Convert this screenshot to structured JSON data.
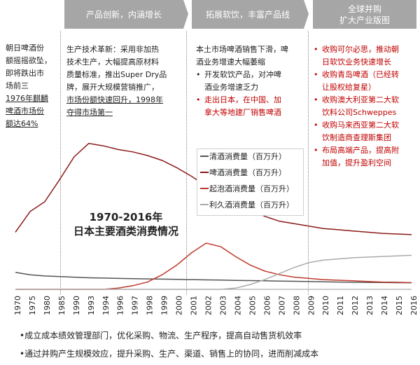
{
  "headers": [
    {
      "text": "产品创新，内涵增长"
    },
    {
      "text": "拓展软饮，丰富产品线"
    },
    {
      "text": "全球并购\n扩大产业版图"
    }
  ],
  "col1": {
    "line1": "朝日啤酒份",
    "line2": "额摇摇欲坠，",
    "line3": "即将跌出市",
    "line4": "场前三",
    "line5": "1976年麒麟",
    "line6": "啤酒市场份",
    "line7": "额达64%"
  },
  "col2": {
    "line1": "生产技术革新：采用非加热",
    "line2": "技术生产，大幅提高原材料",
    "line3": "质量标准，推出Super Dry品",
    "line4": "牌，展开大规模营销推广，",
    "line5": "市场份额快速回升，1998年",
    "line6": "夺得市场第一"
  },
  "col3": {
    "line1": "本土市场啤酒销售下滑，啤",
    "line2": "酒业务增速大幅萎缩",
    "b1a": "开发软饮产品，对冲啤",
    "b1b": "酒业务增速乏力",
    "b2a": "走出日本，在中国、加",
    "b2b": "拿大等地建厂销售啤酒"
  },
  "col4": {
    "b1a": "收购可尔必思，推动朝",
    "b1b": "日软饮业务快速增长",
    "b2a": "收购青岛啤酒（已经转",
    "b2b": "让股权给复星）",
    "b3a": "收购澳大利亚第二大软",
    "b3b": "饮料公司Schweppes",
    "b4a": "收购马来西亚第二大软",
    "b4b": "饮制造商查理斯集团",
    "b5a": "布局高端产品，提高附",
    "b5b": "加值，提升盈利空间"
  },
  "footer": [
    {
      "text": "•成立成本绩效管理部门，优化采购、物流、生产程序，提高自动售货机效率"
    },
    {
      "text": "•通过并购产生规模效应，提升采购、生产、渠道、销售上的协同，进而削减成本"
    }
  ],
  "colors": {
    "header_bg": "#a6a6a6",
    "accent_red": "#c00000"
  },
  "chart_data": {
    "type": "line",
    "title": "1970-2016年\n日本主要酒类消费情况",
    "x": [
      1970,
      1975,
      1980,
      1985,
      1990,
      1993,
      1994,
      1996,
      1997,
      1998,
      1999,
      2000,
      2001,
      2002,
      2003,
      2004,
      2005,
      2006,
      2007,
      2008,
      2009,
      2010,
      2011,
      2012,
      2013,
      2014,
      2015,
      2016
    ],
    "x_tick_labels": [
      "1970",
      "1975",
      "1980",
      "1985",
      "1990",
      "1993",
      "1994",
      "1996",
      "1997",
      "1998",
      "1999",
      "2000",
      "2001",
      "2002",
      "2003",
      "2004",
      "2005",
      "2006",
      "2007",
      "2008",
      "2009",
      "2010",
      "2011",
      "2012",
      "2013",
      "2014",
      "2015",
      "2016"
    ],
    "series": [
      {
        "name": "清酒消费量（百万升）",
        "color": "#555555",
        "values": [
          140,
          120,
          110,
          105,
          100,
          95,
          93,
          90,
          88,
          86,
          84,
          82,
          80,
          78,
          76,
          74,
          72,
          70,
          68,
          66,
          64,
          62,
          60,
          58,
          57,
          56,
          55,
          54
        ]
      },
      {
        "name": "啤酒消费量（百万升）",
        "color": "#8b1a1a",
        "values": [
          470,
          640,
          720,
          900,
          1090,
          1200,
          1180,
          1150,
          1130,
          1100,
          1060,
          1000,
          930,
          850,
          780,
          720,
          660,
          600,
          560,
          540,
          520,
          500,
          490,
          480,
          470,
          460,
          455,
          450
        ]
      },
      {
        "name": "起泡酒消费量（百万升）",
        "color": "#c0392b",
        "values": [
          0,
          0,
          0,
          0,
          0,
          0,
          0,
          10,
          30,
          60,
          120,
          200,
          300,
          380,
          350,
          270,
          200,
          150,
          120,
          100,
          90,
          80,
          75,
          70,
          65,
          60,
          58,
          55
        ]
      },
      {
        "name": "利久酒消费量（百万升）",
        "color": "#aaaaaa",
        "values": [
          0,
          0,
          0,
          0,
          0,
          0,
          0,
          0,
          0,
          0,
          0,
          0,
          0,
          0,
          0,
          10,
          40,
          80,
          130,
          180,
          220,
          240,
          250,
          260,
          265,
          270,
          275,
          280
        ]
      }
    ],
    "ylim": [
      0,
      1250
    ],
    "legend_position": "top-right"
  }
}
